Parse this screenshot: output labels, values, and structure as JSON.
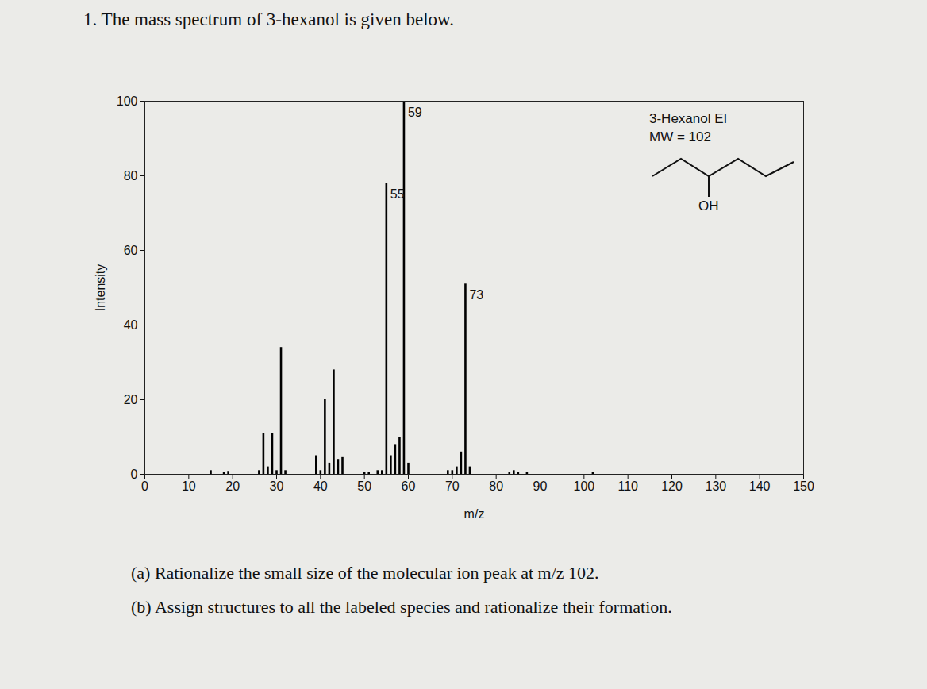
{
  "chart_data": {
    "type": "bar",
    "title": "1. The mass spectrum of 3-hexanol is given below.",
    "xlabel": "m/z",
    "ylabel": "Intensity",
    "x": [
      15,
      18,
      19,
      26,
      27,
      28,
      29,
      30,
      31,
      32,
      39,
      40,
      41,
      42,
      43,
      44,
      45,
      50,
      51,
      53,
      54,
      55,
      56,
      57,
      58,
      59,
      60,
      69,
      70,
      71,
      72,
      73,
      74,
      83,
      84,
      85,
      87,
      102
    ],
    "values": [
      1,
      0.5,
      0.8,
      1,
      11,
      2,
      11,
      1,
      34,
      1,
      5,
      1,
      20,
      3,
      28,
      4,
      4.5,
      0.5,
      0.5,
      1,
      1,
      78,
      5,
      8,
      10,
      100,
      3,
      1,
      1,
      2,
      6,
      51,
      2,
      0.5,
      1,
      0.5,
      0.5,
      0.5
    ],
    "color": "#000000",
    "xlim": [
      0,
      150
    ],
    "xticks": [
      0,
      10,
      20,
      30,
      40,
      50,
      60,
      70,
      80,
      90,
      100,
      110,
      120,
      130,
      140,
      150
    ],
    "ylim": [
      0,
      100
    ],
    "yticks": [
      0,
      20,
      40,
      60,
      80,
      100
    ],
    "annotations": [
      {
        "text": "55",
        "x": 55,
        "y": 78
      },
      {
        "text": "59",
        "x": 59,
        "y": 100
      },
      {
        "text": "73",
        "x": 73,
        "y": 51
      }
    ],
    "inset": {
      "title": "3-Hexanol EI",
      "subtitle": "MW = 102",
      "label": "OH"
    },
    "caption": [
      "(a) Rationalize the small size of the molecular ion peak at m/z 102.",
      "(b) Assign structures to all the labeled species and rationalize their formation."
    ]
  }
}
